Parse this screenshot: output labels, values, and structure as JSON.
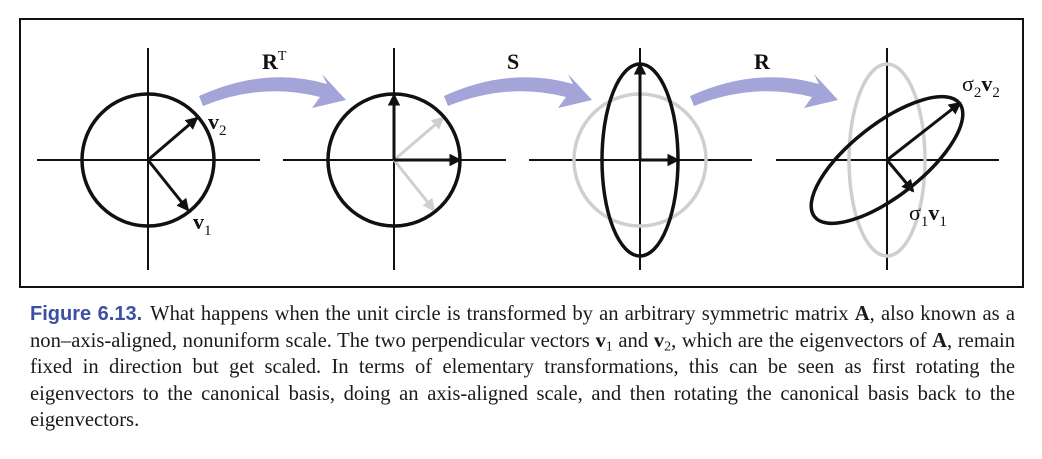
{
  "labels": {
    "transform_1": "R",
    "transform_1_superscript": "T",
    "transform_2": "S",
    "transform_3": "R",
    "v2": "v",
    "v2_sub": "2",
    "v1": "v",
    "v1_sub": "1",
    "sigma2v2_sigma": "σ",
    "sigma2v2_sigma_sub": "2",
    "sigma2v2_v": "v",
    "sigma2v2_v_sub": "2",
    "sigma1v1_sigma": "σ",
    "sigma1v1_sigma_sub": "1",
    "sigma1v1_v": "v",
    "sigma1v1_v_sub": "1"
  },
  "caption": {
    "figure_label": "Figure 6.13.",
    "t1": "What happens when the unit circle is transformed by an arbitrary symmetric matrix ",
    "A1": "A",
    "t2": ", also known as a non–axis-aligned, nonuniform scale. The two perpendicular vectors ",
    "v1": "v",
    "v1_sub": "1",
    "t3": " and ",
    "v2": "v",
    "v2_sub": "2",
    "t4": ", which are the eigenvectors of ",
    "A2": "A",
    "t5": ", remain fixed in direction but get scaled. In terms of elementary transformations, this can be seen as first rotating the eigenvectors to the canonical basis, doing an axis-aligned scale, and then rotating the canonical basis back to the eigenvectors."
  },
  "colors": {
    "arrow_band": "#a3a4d8",
    "ghost": "#cfcfcf",
    "ink": "#111111",
    "caption_label": "#3b4fa3"
  }
}
